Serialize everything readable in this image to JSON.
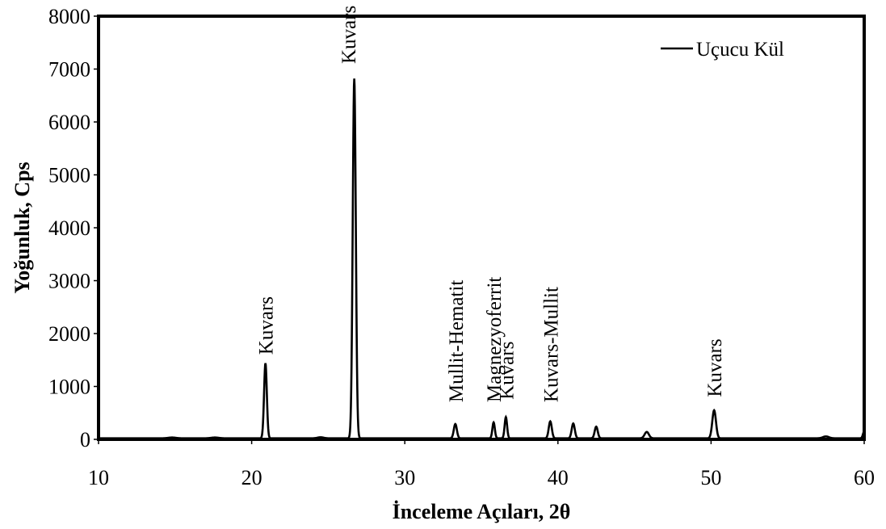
{
  "chart_data": {
    "type": "line",
    "title": "",
    "xlabel": "İnceleme Açıları, 2θ",
    "ylabel": "Yoğunluk, Cps",
    "xlim": [
      10,
      60
    ],
    "ylim": [
      0,
      8000
    ],
    "xticks": [
      10,
      20,
      30,
      40,
      50,
      60
    ],
    "yticks": [
      0,
      1000,
      2000,
      3000,
      4000,
      5000,
      6000,
      7000,
      8000
    ],
    "grid": false,
    "legend": "top-right",
    "series": [
      {
        "name": "Uçucu Kül",
        "color": "#000000",
        "baseline": 20,
        "peaks": [
          {
            "x": 14.8,
            "height": 15,
            "width": 0.25
          },
          {
            "x": 17.6,
            "height": 15,
            "width": 0.25
          },
          {
            "x": 20.9,
            "height": 1420,
            "width": 0.09
          },
          {
            "x": 24.5,
            "height": 20,
            "width": 0.2
          },
          {
            "x": 26.7,
            "height": 6800,
            "width": 0.1
          },
          {
            "x": 33.3,
            "height": 270,
            "width": 0.1
          },
          {
            "x": 35.8,
            "height": 300,
            "width": 0.08
          },
          {
            "x": 36.6,
            "height": 400,
            "width": 0.08
          },
          {
            "x": 39.5,
            "height": 320,
            "width": 0.1
          },
          {
            "x": 41.0,
            "height": 280,
            "width": 0.1
          },
          {
            "x": 42.5,
            "height": 220,
            "width": 0.1
          },
          {
            "x": 45.8,
            "height": 120,
            "width": 0.14
          },
          {
            "x": 50.2,
            "height": 530,
            "width": 0.12
          },
          {
            "x": 57.5,
            "height": 35,
            "width": 0.2
          },
          {
            "x": 60.0,
            "height": 130,
            "width": 0.08
          }
        ]
      }
    ],
    "annotations": [
      {
        "text": "Kuvars",
        "x": 20.9,
        "y": 1600
      },
      {
        "text": "Kuvars",
        "x": 26.3,
        "y": 7100
      },
      {
        "text": "Mullit-Hematit",
        "x": 33.3,
        "y": 700
      },
      {
        "text": "Magnezyoferrit",
        "x": 35.8,
        "y": 700
      },
      {
        "text": "Kuvars",
        "x": 36.6,
        "y": 750
      },
      {
        "text": "Kuvars-Mullit",
        "x": 39.5,
        "y": 700
      },
      {
        "text": "Kuvars",
        "x": 50.2,
        "y": 800
      }
    ]
  }
}
